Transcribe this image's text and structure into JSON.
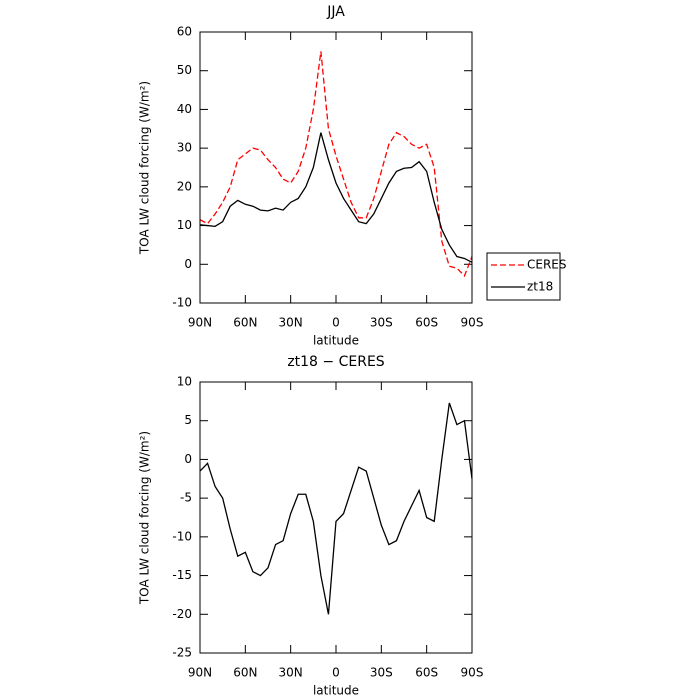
{
  "chart_data": [
    {
      "type": "line",
      "title": "JJA",
      "xlabel": "latitude",
      "ylabel": "TOA LW cloud forcing (W/m²)",
      "x": [
        90,
        85,
        80,
        75,
        70,
        65,
        60,
        55,
        50,
        45,
        40,
        35,
        30,
        25,
        20,
        15,
        10,
        5,
        0,
        -5,
        -10,
        -15,
        -20,
        -25,
        -30,
        -35,
        -40,
        -45,
        -50,
        -55,
        -60,
        -65,
        -70,
        -75,
        -80,
        -85,
        -90
      ],
      "series": [
        {
          "name": "CERES",
          "color": "#ff0000",
          "dashed": true,
          "values": [
            11.5,
            10.5,
            13,
            16,
            20,
            27,
            28.5,
            30,
            29.5,
            27,
            25,
            22,
            21,
            24,
            30,
            40,
            55,
            35,
            28,
            22,
            16,
            12,
            12,
            17,
            24,
            31,
            34,
            33,
            31,
            30,
            31,
            25,
            6,
            -0.5,
            -1,
            -3,
            2
          ]
        },
        {
          "name": "zt18",
          "color": "#000000",
          "dashed": false,
          "values": [
            10.2,
            10,
            9.8,
            11,
            15,
            16.5,
            15.5,
            15,
            14,
            13.8,
            14.5,
            14,
            16,
            17,
            20,
            25,
            34,
            27,
            21,
            17,
            14,
            11,
            10.5,
            13,
            17,
            21,
            24,
            24.8,
            25,
            26.5,
            24,
            16,
            9,
            5,
            2,
            1.5,
            0.5
          ]
        }
      ],
      "xlim": [
        90,
        -90
      ],
      "xticks": [
        {
          "value": 90,
          "label": "90N"
        },
        {
          "value": 60,
          "label": "60N"
        },
        {
          "value": 30,
          "label": "30N"
        },
        0,
        {
          "value": -30,
          "label": "30S"
        },
        {
          "value": -60,
          "label": "60S"
        },
        {
          "value": -90,
          "label": "90S"
        }
      ],
      "ylim": [
        -10,
        60
      ],
      "yticks": [
        -10,
        0,
        10,
        20,
        30,
        40,
        50,
        60
      ],
      "legend": "right"
    },
    {
      "type": "line",
      "title": "zt18 − CERES",
      "xlabel": "latitude",
      "ylabel": "TOA LW cloud forcing (W/m²)",
      "x": [
        90,
        85,
        80,
        75,
        70,
        65,
        60,
        55,
        50,
        45,
        40,
        35,
        30,
        25,
        20,
        15,
        10,
        5,
        0,
        -5,
        -10,
        -15,
        -20,
        -25,
        -30,
        -35,
        -40,
        -45,
        -50,
        -55,
        -60,
        -65,
        -70,
        -75,
        -80,
        -85,
        -90
      ],
      "series": [
        {
          "color": "#000000",
          "dashed": false,
          "values": [
            -1.5,
            -0.5,
            -3.5,
            -5,
            -9,
            -12.5,
            -12,
            -14.5,
            -15,
            -14,
            -11,
            -10.5,
            -7,
            -4.5,
            -4.5,
            -8,
            -15,
            -20,
            -8,
            -7,
            -4,
            -1,
            -1.5,
            -5,
            -8.5,
            -11,
            -10.5,
            -8,
            -6,
            -4,
            -7.5,
            -8,
            0,
            7.3,
            4.5,
            5,
            -2.5
          ]
        }
      ],
      "xlim": [
        90,
        -90
      ],
      "xticks": [
        {
          "value": 90,
          "label": "90N"
        },
        {
          "value": 60,
          "label": "60N"
        },
        {
          "value": 30,
          "label": "30N"
        },
        0,
        {
          "value": -30,
          "label": "30S"
        },
        {
          "value": -60,
          "label": "60S"
        },
        {
          "value": -90,
          "label": "90S"
        }
      ],
      "ylim": [
        -25,
        10
      ],
      "yticks": [
        -25,
        -20,
        -15,
        -10,
        -5,
        0,
        5,
        10
      ]
    }
  ]
}
